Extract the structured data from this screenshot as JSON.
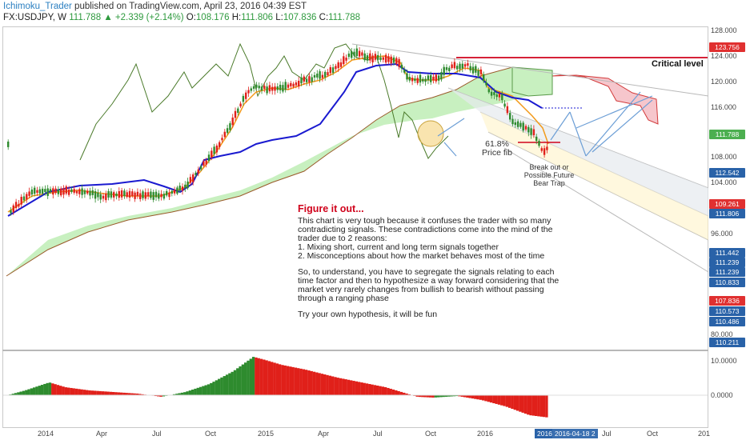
{
  "header": {
    "author": "Ichimoku_Trader",
    "published": " published on TradingView.com, April 23, 2016 04:39 EST",
    "symbol": "FX:USDJPY, W",
    "last": "111.788",
    "change": "▲ +2.339 (+2.14%)",
    "open_label": "O:",
    "open": "108.176",
    "high_label": "H:",
    "high": "111.806",
    "low_label": "L:",
    "low": "107.836",
    "close_label": "C:",
    "close": "111.788"
  },
  "price_axis": {
    "ticks": [
      "128.000",
      "124.000",
      "120.000",
      "116.000",
      "108.000",
      "104.000",
      "96.000",
      "80.000"
    ],
    "tags": [
      {
        "text": "123.756",
        "color": "#e03030"
      },
      {
        "text": "111.788",
        "color": "#4caf50"
      },
      {
        "text": "112.542",
        "color": "#2962a8"
      },
      {
        "text": "109.261",
        "color": "#e03030"
      },
      {
        "text": "111.806",
        "color": "#2962a8"
      },
      {
        "text": "111.442",
        "color": "#2962a8"
      },
      {
        "text": "111.239",
        "color": "#2962a8"
      },
      {
        "text": "111.239",
        "color": "#2962a8"
      },
      {
        "text": "110.833",
        "color": "#2962a8"
      },
      {
        "text": "107.836",
        "color": "#e03030"
      },
      {
        "text": "110.573",
        "color": "#2962a8"
      },
      {
        "text": "110.486",
        "color": "#2962a8"
      },
      {
        "text": "110.211",
        "color": "#2962a8"
      }
    ]
  },
  "osc_axis": {
    "ticks": [
      "10.0000",
      "0.0000"
    ]
  },
  "time_axis": {
    "ticks": [
      "2014",
      "Apr",
      "Jul",
      "Oct",
      "2015",
      "Apr",
      "Jul",
      "Oct",
      "2016",
      "Apr",
      "Jul",
      "Oct",
      "201"
    ],
    "tags": [
      "2016",
      "2016-04-18 2"
    ]
  },
  "annotations": {
    "critical": "Critical level",
    "fib": "61.8%\nPrice fib",
    "breakout": "Break out or\nPossible Future\nBear Trap"
  },
  "note": {
    "title": "Figure it out...",
    "p1": "This chart is very tough because it confuses the trader with so many contradicting signals. These contradictions come into the mind of the trader due to 2 reasons:\n1. Mixing short, current and long term signals together\n2. Misconceptions about how the market behaves most of the time",
    "p2": "So, to understand, you have to segregate the signals relating to each time factor and then to hypothesize a way forward considering that the market very rarely changes from bullish to bearish without passing through a ranging phase",
    "p3": "Try your own hypothesis, it will be fun"
  },
  "colors": {
    "bull": "#2e8b2e",
    "bear": "#e0201a",
    "tenkan": "#f29a1a",
    "kijun": "#1a1ad0",
    "chikou": "#4a7a2a",
    "cloud": "#c8f0c0",
    "cloud_bear": "#f6c6cc",
    "accent": "#2962a8"
  }
}
